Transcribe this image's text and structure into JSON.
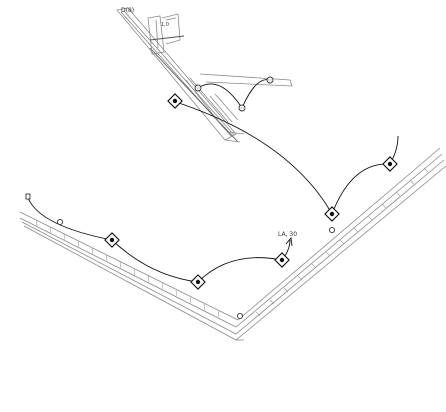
{
  "annotations": {
    "circuit_label": "LA, 30",
    "room_tag": "D(8)",
    "small_tag": "1,0"
  },
  "colors": {
    "background": "#ffffff",
    "wall_lines": "#8a8a8a",
    "wiring": "#111111"
  }
}
